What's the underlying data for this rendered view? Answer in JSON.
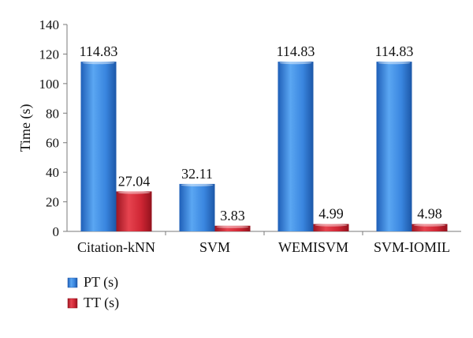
{
  "chart_data": {
    "type": "bar",
    "title": "",
    "xlabel": "",
    "ylabel": "Time (s)",
    "ylim": [
      0,
      140
    ],
    "yticks": [
      0,
      20,
      40,
      60,
      80,
      100,
      120,
      140
    ],
    "grid": false,
    "legend_position": "bottom-left",
    "categories": [
      "Citation-kNN",
      "SVM",
      "WEMISVM",
      "SVM-IOMIL"
    ],
    "series": [
      {
        "name": "PT (s)",
        "values": [
          114.83,
          32.11,
          114.83,
          114.83
        ],
        "labels": [
          "114.83",
          "32.11",
          "114.83",
          "114.83"
        ],
        "color": "#3a86df"
      },
      {
        "name": "TT (s)",
        "values": [
          27.04,
          3.83,
          4.99,
          4.98
        ],
        "labels": [
          "27.04",
          "3.83",
          "4.99",
          "4.98"
        ],
        "color": "#d42a3a"
      }
    ]
  }
}
